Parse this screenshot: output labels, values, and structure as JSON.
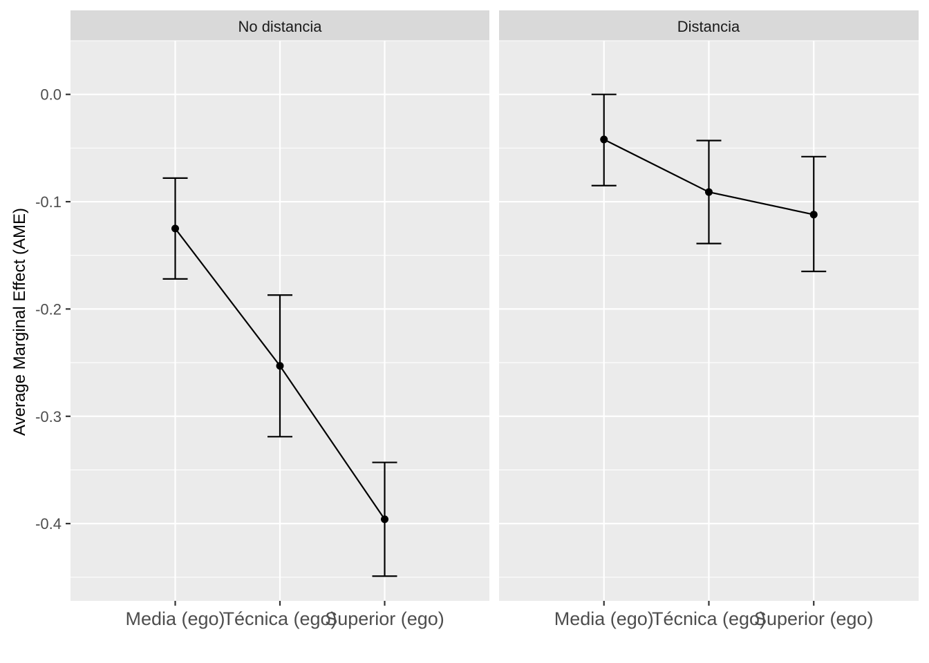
{
  "chart_data": {
    "type": "line",
    "title": "",
    "xlabel": "",
    "ylabel": "Average Marginal Effect (AME)",
    "categories": [
      "Media (ego)",
      "Técnica (ego)",
      "Superior (ego)"
    ],
    "y_ticks": [
      0.0,
      -0.1,
      -0.2,
      -0.3,
      -0.4
    ],
    "y_tick_labels": [
      "0.0",
      "-0.1",
      "-0.2",
      "-0.3",
      "-0.4"
    ],
    "ylim": [
      -0.472,
      0.05
    ],
    "grid": true,
    "error_bars": true,
    "facets": [
      {
        "label": "No distancia",
        "values": [
          -0.125,
          -0.253,
          -0.396
        ],
        "lower": [
          -0.172,
          -0.319,
          -0.449
        ],
        "upper": [
          -0.078,
          -0.187,
          -0.343
        ]
      },
      {
        "label": "Distancia",
        "values": [
          -0.042,
          -0.091,
          -0.112
        ],
        "lower": [
          -0.085,
          -0.139,
          -0.165
        ],
        "upper": [
          0.0,
          -0.043,
          -0.058
        ]
      }
    ],
    "colors": {
      "panel_bg": "#ebebeb",
      "strip_bg": "#d9d9d9",
      "grid": "#ffffff",
      "series": "#000000",
      "tick_text": "#4d4d4d"
    }
  }
}
